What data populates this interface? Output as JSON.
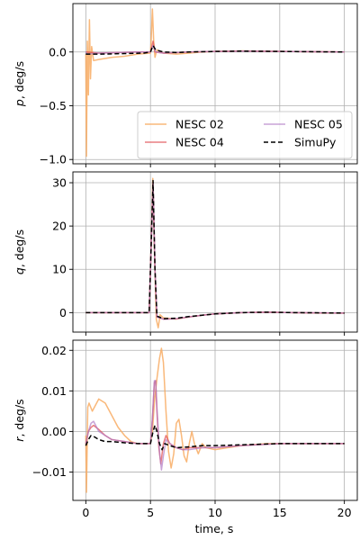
{
  "figure": {
    "xlabel": "time, s"
  },
  "legend": {
    "entries": [
      {
        "label": "NESC 02",
        "series_index": 0
      },
      {
        "label": "NESC 04",
        "series_index": 1
      },
      {
        "label": "NESC 05",
        "series_index": 2
      },
      {
        "label": "SimuPy",
        "series_index": 3
      }
    ]
  },
  "styles": [
    {
      "name": "NESC 02",
      "color": "#f8ab63",
      "dash": "",
      "opacity": 0.85,
      "width": 1.5
    },
    {
      "name": "NESC 04",
      "color": "#e0474c",
      "dash": "",
      "opacity": 0.7,
      "width": 1.5
    },
    {
      "name": "NESC 05",
      "color": "#b07cc6",
      "dash": "",
      "opacity": 0.7,
      "width": 1.5
    },
    {
      "name": "SimuPy",
      "color": "#000000",
      "dash": "5,3",
      "opacity": 1,
      "width": 1.5
    }
  ],
  "chart_data": [
    {
      "type": "line",
      "ylabel_var": "p",
      "ylabel_unit": ", deg/s",
      "xlim": [
        -1.0,
        21.0
      ],
      "ylim": [
        -1.04,
        0.45
      ],
      "xticks": [
        0,
        5,
        10,
        15,
        20
      ],
      "yticks": [
        -1.0,
        -0.5,
        0.0
      ],
      "ytick_labels": [
        "−1.0",
        "−0.5",
        "0.0"
      ],
      "grid": true,
      "legend": "lower-right",
      "series": [
        {
          "name": "NESC 02",
          "points": [
            [
              0,
              -0.02
            ],
            [
              0.05,
              -0.97
            ],
            [
              0.12,
              0.1
            ],
            [
              0.2,
              -0.4
            ],
            [
              0.28,
              0.3
            ],
            [
              0.36,
              -0.25
            ],
            [
              0.45,
              0.05
            ],
            [
              0.6,
              -0.08
            ],
            [
              1,
              -0.07
            ],
            [
              2,
              -0.05
            ],
            [
              3,
              -0.04
            ],
            [
              4,
              -0.02
            ],
            [
              5,
              -0.01
            ],
            [
              5.05,
              0.1
            ],
            [
              5.15,
              0.4
            ],
            [
              5.25,
              0.1
            ],
            [
              5.35,
              -0.05
            ],
            [
              5.5,
              0.02
            ],
            [
              6,
              -0.01
            ],
            [
              7,
              -0.02
            ],
            [
              8,
              -0.01
            ],
            [
              9,
              0.0
            ],
            [
              10,
              0.005
            ],
            [
              12,
              0.01
            ],
            [
              15,
              0.005
            ],
            [
              20,
              0.0
            ]
          ]
        },
        {
          "name": "NESC 04",
          "points": [
            [
              0,
              0.0
            ],
            [
              1,
              -0.01
            ],
            [
              4,
              0.0
            ],
            [
              5,
              0.0
            ],
            [
              5.2,
              0.1
            ],
            [
              5.35,
              0.0
            ],
            [
              6,
              -0.01
            ],
            [
              8,
              0.0
            ],
            [
              10,
              0.005
            ],
            [
              12,
              0.008
            ],
            [
              15,
              0.005
            ],
            [
              20,
              0.0
            ]
          ]
        },
        {
          "name": "NESC 05",
          "points": [
            [
              0,
              0.0
            ],
            [
              0.1,
              -0.02
            ],
            [
              1,
              -0.01
            ],
            [
              4,
              0.0
            ],
            [
              5,
              0.0
            ],
            [
              5.2,
              0.06
            ],
            [
              5.4,
              0.0
            ],
            [
              6,
              -0.01
            ],
            [
              8,
              0.0
            ],
            [
              10,
              0.005
            ],
            [
              12,
              0.008
            ],
            [
              15,
              0.005
            ],
            [
              20,
              0.0
            ]
          ]
        },
        {
          "name": "SimuPy",
          "points": [
            [
              0,
              -0.02
            ],
            [
              1,
              -0.02
            ],
            [
              3,
              -0.015
            ],
            [
              4.5,
              -0.01
            ],
            [
              5,
              0.0
            ],
            [
              5.2,
              0.06
            ],
            [
              5.4,
              0.02
            ],
            [
              6,
              0.0
            ],
            [
              7,
              -0.005
            ],
            [
              8,
              0.0
            ],
            [
              10,
              0.005
            ],
            [
              12,
              0.008
            ],
            [
              15,
              0.005
            ],
            [
              20,
              0.0
            ]
          ]
        }
      ]
    },
    {
      "type": "line",
      "ylabel_var": "q",
      "ylabel_unit": ", deg/s",
      "xlim": [
        -1.0,
        21.0
      ],
      "ylim": [
        -4.5,
        32.5
      ],
      "xticks": [
        0,
        5,
        10,
        15,
        20
      ],
      "yticks": [
        0,
        10,
        20,
        30
      ],
      "ytick_labels": [
        "0",
        "10",
        "20",
        "30"
      ],
      "grid": true,
      "series": [
        {
          "name": "NESC 02",
          "points": [
            [
              0,
              0
            ],
            [
              4.9,
              0
            ],
            [
              5.05,
              15
            ],
            [
              5.18,
              31
            ],
            [
              5.3,
              15
            ],
            [
              5.45,
              -1.5
            ],
            [
              5.6,
              -3.5
            ],
            [
              5.75,
              -0.5
            ],
            [
              6,
              -1.2
            ],
            [
              7,
              -1.5
            ],
            [
              8,
              -1.0
            ],
            [
              9,
              -0.6
            ],
            [
              10,
              -0.3
            ],
            [
              12,
              0.0
            ],
            [
              14,
              0.1
            ],
            [
              16,
              0.0
            ],
            [
              18,
              -0.1
            ],
            [
              20,
              -0.1
            ]
          ]
        },
        {
          "name": "NESC 04",
          "points": [
            [
              0,
              0
            ],
            [
              4.9,
              0
            ],
            [
              5.05,
              15
            ],
            [
              5.2,
              30
            ],
            [
              5.35,
              10
            ],
            [
              5.5,
              -1
            ],
            [
              6,
              -1.5
            ],
            [
              7,
              -1.4
            ],
            [
              8,
              -1.0
            ],
            [
              9,
              -0.6
            ],
            [
              10,
              -0.3
            ],
            [
              12,
              0.0
            ],
            [
              14,
              0.1
            ],
            [
              16,
              0.0
            ],
            [
              20,
              -0.1
            ]
          ]
        },
        {
          "name": "NESC 05",
          "points": [
            [
              0,
              0
            ],
            [
              4.9,
              0
            ],
            [
              5.05,
              15
            ],
            [
              5.2,
              30
            ],
            [
              5.35,
              10
            ],
            [
              5.5,
              -1
            ],
            [
              6,
              -1.5
            ],
            [
              7,
              -1.4
            ],
            [
              8,
              -1.0
            ],
            [
              9,
              -0.6
            ],
            [
              10,
              -0.3
            ],
            [
              12,
              0.0
            ],
            [
              14,
              0.1
            ],
            [
              16,
              0.0
            ],
            [
              20,
              -0.1
            ]
          ]
        },
        {
          "name": "SimuPy",
          "points": [
            [
              0,
              0
            ],
            [
              4.9,
              0
            ],
            [
              5.05,
              15
            ],
            [
              5.2,
              30.5
            ],
            [
              5.35,
              10
            ],
            [
              5.5,
              -0.8
            ],
            [
              6,
              -1.4
            ],
            [
              7,
              -1.3
            ],
            [
              8,
              -0.9
            ],
            [
              9,
              -0.6
            ],
            [
              10,
              -0.3
            ],
            [
              12,
              0.0
            ],
            [
              14,
              0.1
            ],
            [
              16,
              0.0
            ],
            [
              20,
              -0.1
            ]
          ]
        }
      ]
    },
    {
      "type": "line",
      "ylabel_var": "r",
      "ylabel_unit": ", deg/s",
      "xlim": [
        -1.0,
        21.0
      ],
      "ylim": [
        -0.017,
        0.0225
      ],
      "xticks": [
        0,
        5,
        10,
        15,
        20
      ],
      "xtick_labels": [
        "0",
        "5",
        "10",
        "15",
        "20"
      ],
      "yticks": [
        -0.01,
        0.0,
        0.01,
        0.02
      ],
      "ytick_labels": [
        "−0.01",
        "0.00",
        "0.01",
        "0.02"
      ],
      "grid": true,
      "series": [
        {
          "name": "NESC 02",
          "points": [
            [
              0,
              -0.001
            ],
            [
              0.05,
              -0.015
            ],
            [
              0.15,
              0.006
            ],
            [
              0.25,
              0.007
            ],
            [
              0.5,
              0.005
            ],
            [
              1,
              0.008
            ],
            [
              1.5,
              0.007
            ],
            [
              2,
              0.004
            ],
            [
              2.5,
              0.001
            ],
            [
              3,
              -0.001
            ],
            [
              3.5,
              -0.0025
            ],
            [
              4,
              -0.003
            ],
            [
              4.5,
              -0.003
            ],
            [
              5,
              -0.003
            ],
            [
              5.15,
              0.0
            ],
            [
              5.3,
              0.007
            ],
            [
              5.5,
              0.013
            ],
            [
              5.7,
              0.018
            ],
            [
              5.85,
              0.0205
            ],
            [
              6.0,
              0.017
            ],
            [
              6.2,
              0.005
            ],
            [
              6.4,
              -0.005
            ],
            [
              6.6,
              -0.009
            ],
            [
              6.8,
              -0.0055
            ],
            [
              7.0,
              0.002
            ],
            [
              7.2,
              0.003
            ],
            [
              7.4,
              -0.001
            ],
            [
              7.6,
              -0.006
            ],
            [
              7.8,
              -0.0075
            ],
            [
              8.0,
              -0.003
            ],
            [
              8.2,
              0.0
            ],
            [
              8.4,
              -0.003
            ],
            [
              8.7,
              -0.0055
            ],
            [
              9.0,
              -0.003
            ],
            [
              9.3,
              -0.004
            ],
            [
              10,
              -0.0045
            ],
            [
              11,
              -0.004
            ],
            [
              12,
              -0.0035
            ],
            [
              14,
              -0.003
            ],
            [
              20,
              -0.003
            ]
          ]
        },
        {
          "name": "NESC 04",
          "points": [
            [
              0,
              -0.003
            ],
            [
              0.2,
              0.0
            ],
            [
              0.4,
              0.001
            ],
            [
              0.6,
              0.0015
            ],
            [
              1,
              0.0005
            ],
            [
              1.5,
              -0.001
            ],
            [
              2,
              -0.002
            ],
            [
              3,
              -0.0025
            ],
            [
              4,
              -0.003
            ],
            [
              5,
              -0.003
            ],
            [
              5.15,
              0.003
            ],
            [
              5.3,
              0.012
            ],
            [
              5.4,
              0.0125
            ],
            [
              5.5,
              0.005
            ],
            [
              5.65,
              -0.004
            ],
            [
              5.8,
              -0.008
            ],
            [
              6,
              -0.003
            ],
            [
              6.2,
              -0.001
            ],
            [
              6.5,
              -0.003
            ],
            [
              7,
              -0.004
            ],
            [
              7.5,
              -0.0045
            ],
            [
              8,
              -0.004
            ],
            [
              9,
              -0.004
            ],
            [
              10,
              -0.004
            ],
            [
              12,
              -0.0035
            ],
            [
              15,
              -0.003
            ],
            [
              20,
              -0.003
            ]
          ]
        },
        {
          "name": "NESC 05",
          "points": [
            [
              0,
              -0.003
            ],
            [
              0.2,
              0.0
            ],
            [
              0.4,
              0.002
            ],
            [
              0.6,
              0.0025
            ],
            [
              1,
              0.0
            ],
            [
              1.5,
              -0.001
            ],
            [
              2,
              -0.002
            ],
            [
              3,
              -0.0025
            ],
            [
              4,
              -0.003
            ],
            [
              5,
              -0.003
            ],
            [
              5.15,
              0.003
            ],
            [
              5.3,
              0.0125
            ],
            [
              5.4,
              0.0125
            ],
            [
              5.5,
              0.006
            ],
            [
              5.7,
              -0.005
            ],
            [
              5.85,
              -0.0095
            ],
            [
              6,
              -0.006
            ],
            [
              6.2,
              -0.002
            ],
            [
              6.5,
              -0.003
            ],
            [
              7,
              -0.004
            ],
            [
              7.5,
              -0.0045
            ],
            [
              8,
              -0.0045
            ],
            [
              9,
              -0.004
            ],
            [
              10,
              -0.004
            ],
            [
              12,
              -0.0035
            ],
            [
              15,
              -0.003
            ],
            [
              20,
              -0.003
            ]
          ]
        },
        {
          "name": "SimuPy",
          "points": [
            [
              0,
              -0.0035
            ],
            [
              0.2,
              -0.002
            ],
            [
              0.4,
              -0.001
            ],
            [
              0.6,
              -0.0012
            ],
            [
              1,
              -0.002
            ],
            [
              1.5,
              -0.0025
            ],
            [
              2,
              -0.0025
            ],
            [
              3,
              -0.0028
            ],
            [
              4,
              -0.003
            ],
            [
              5,
              -0.003
            ],
            [
              5.2,
              0.0
            ],
            [
              5.35,
              0.0015
            ],
            [
              5.5,
              0.0
            ],
            [
              5.7,
              -0.003
            ],
            [
              5.9,
              -0.0045
            ],
            [
              6.1,
              -0.003
            ],
            [
              6.5,
              -0.0035
            ],
            [
              7,
              -0.004
            ],
            [
              8,
              -0.0038
            ],
            [
              9,
              -0.0035
            ],
            [
              10,
              -0.0035
            ],
            [
              12,
              -0.0033
            ],
            [
              15,
              -0.003
            ],
            [
              20,
              -0.003
            ]
          ]
        }
      ]
    }
  ]
}
